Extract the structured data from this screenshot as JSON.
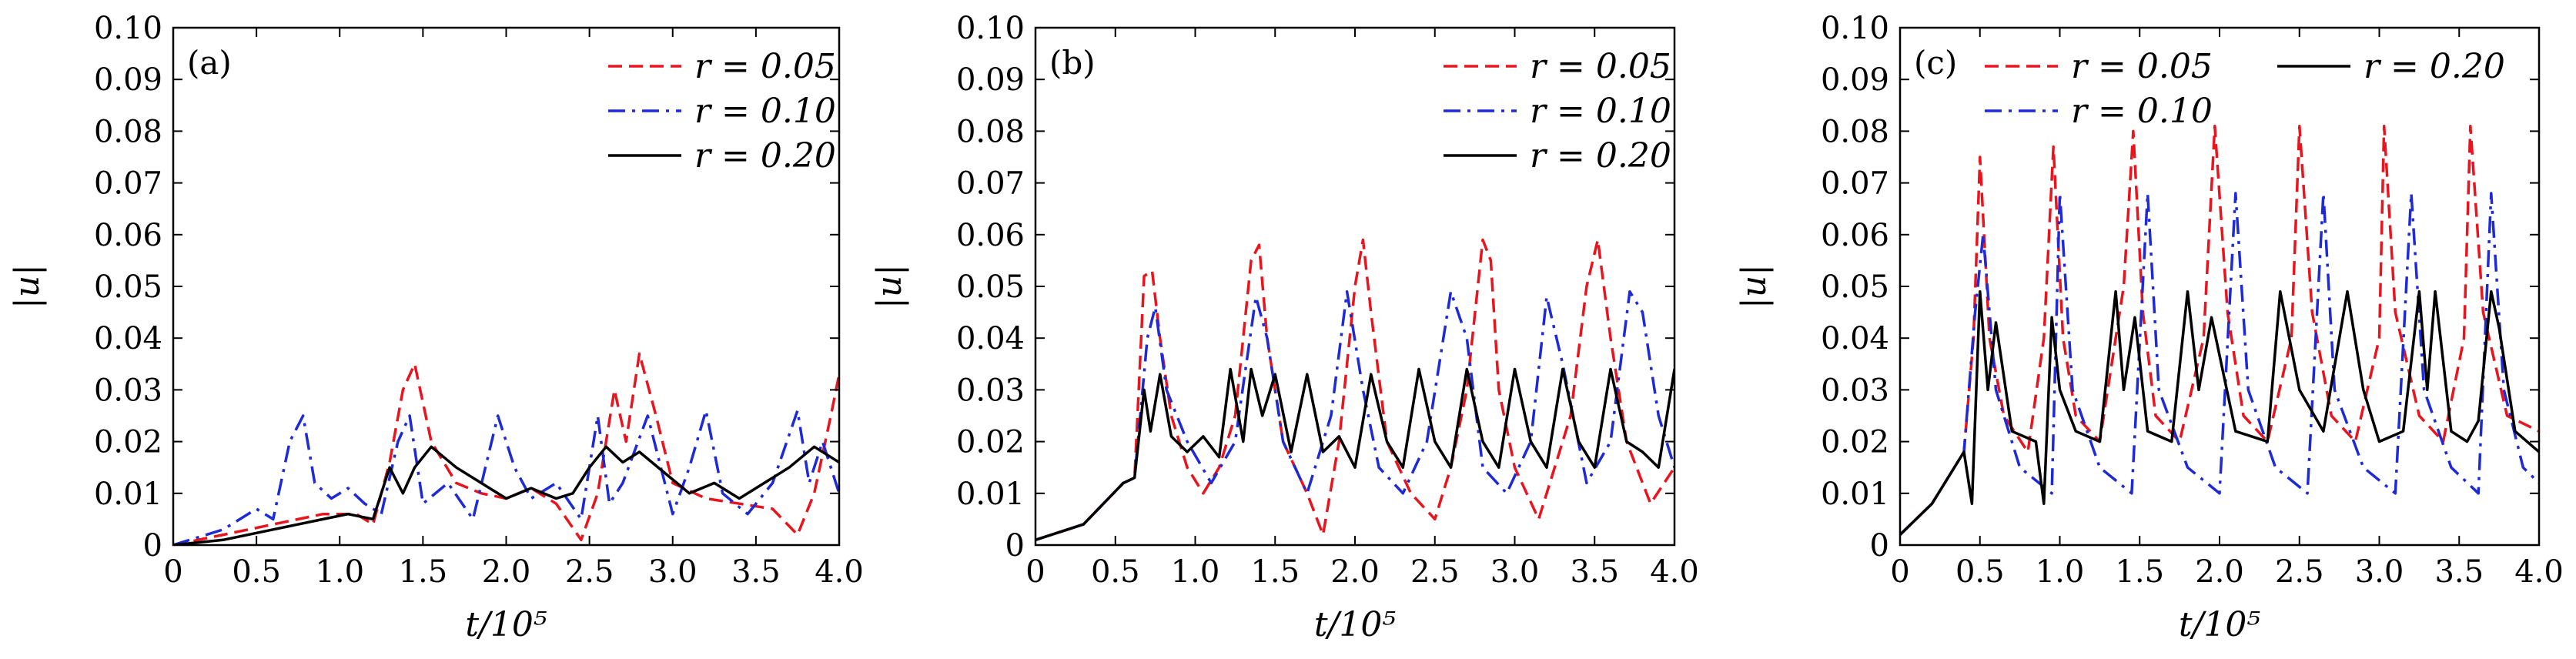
{
  "colors": {
    "r005": "#e8141e",
    "r010": "#1e2ad6",
    "r020": "#000000"
  },
  "chart_data": [
    {
      "type": "line",
      "panel_label": "(a)",
      "xlabel": "t/10⁵",
      "ylabel": "|u|",
      "xlim": [
        0,
        4.0
      ],
      "ylim": [
        0,
        0.1
      ],
      "xticks": [
        "0",
        "0.5",
        "1.0",
        "1.5",
        "2.0",
        "2.5",
        "3.0",
        "3.5",
        "4.0"
      ],
      "yticks": [
        "0",
        "0.01",
        "0.02",
        "0.03",
        "0.04",
        "0.05",
        "0.06",
        "0.07",
        "0.08",
        "0.09",
        "0.10"
      ],
      "legend_position": "top-right",
      "series": [
        {
          "name": "r = 0.05",
          "style": "dashed",
          "color_key": "r005",
          "x": [
            0,
            0.3,
            0.6,
            0.9,
            1.1,
            1.2,
            1.3,
            1.38,
            1.45,
            1.55,
            1.7,
            1.85,
            2.0,
            2.15,
            2.3,
            2.45,
            2.55,
            2.65,
            2.72,
            2.8,
            2.9,
            3.0,
            3.2,
            3.4,
            3.6,
            3.75,
            3.85,
            3.95,
            4.0
          ],
          "y": [
            0,
            0.002,
            0.004,
            0.006,
            0.006,
            0.004,
            0.016,
            0.03,
            0.035,
            0.02,
            0.012,
            0.01,
            0.009,
            0.011,
            0.008,
            0.001,
            0.01,
            0.03,
            0.02,
            0.037,
            0.025,
            0.012,
            0.009,
            0.008,
            0.007,
            0.002,
            0.01,
            0.025,
            0.033
          ]
        },
        {
          "name": "r = 0.10",
          "style": "dashdot",
          "color_key": "r010",
          "x": [
            0,
            0.3,
            0.5,
            0.6,
            0.7,
            0.78,
            0.85,
            0.95,
            1.05,
            1.15,
            1.25,
            1.35,
            1.42,
            1.5,
            1.65,
            1.8,
            1.95,
            2.05,
            2.15,
            2.3,
            2.45,
            2.55,
            2.62,
            2.7,
            2.85,
            3.0,
            3.1,
            3.2,
            3.3,
            3.45,
            3.6,
            3.75,
            3.82,
            3.9,
            4.0
          ],
          "y": [
            0,
            0.003,
            0.007,
            0.005,
            0.02,
            0.025,
            0.012,
            0.009,
            0.011,
            0.008,
            0.006,
            0.02,
            0.025,
            0.008,
            0.012,
            0.005,
            0.025,
            0.015,
            0.009,
            0.012,
            0.005,
            0.025,
            0.008,
            0.012,
            0.025,
            0.006,
            0.015,
            0.026,
            0.01,
            0.006,
            0.012,
            0.026,
            0.012,
            0.02,
            0.01
          ]
        },
        {
          "name": "r = 0.20",
          "style": "solid",
          "color_key": "r020",
          "x": [
            0,
            0.3,
            0.6,
            0.9,
            1.05,
            1.2,
            1.3,
            1.38,
            1.45,
            1.55,
            1.7,
            1.85,
            2.0,
            2.15,
            2.3,
            2.4,
            2.5,
            2.6,
            2.7,
            2.8,
            2.95,
            3.1,
            3.25,
            3.4,
            3.55,
            3.7,
            3.85,
            4.0
          ],
          "y": [
            0,
            0.001,
            0.003,
            0.005,
            0.006,
            0.005,
            0.015,
            0.01,
            0.015,
            0.019,
            0.015,
            0.012,
            0.009,
            0.011,
            0.009,
            0.01,
            0.015,
            0.019,
            0.016,
            0.018,
            0.014,
            0.01,
            0.012,
            0.009,
            0.012,
            0.015,
            0.019,
            0.016
          ]
        }
      ]
    },
    {
      "type": "line",
      "panel_label": "(b)",
      "xlabel": "t/10⁵",
      "ylabel": "|u|",
      "xlim": [
        0,
        4.0
      ],
      "ylim": [
        0,
        0.1
      ],
      "xticks": [
        "0",
        "0.5",
        "1.0",
        "1.5",
        "2.0",
        "2.5",
        "3.0",
        "3.5",
        "4.0"
      ],
      "yticks": [
        "0",
        "0.01",
        "0.02",
        "0.03",
        "0.04",
        "0.05",
        "0.06",
        "0.07",
        "0.08",
        "0.09",
        "0.10"
      ],
      "legend_position": "top-right",
      "series": [
        {
          "name": "r = 0.05",
          "style": "dashed",
          "color_key": "r005",
          "x": [
            0,
            0.3,
            0.55,
            0.62,
            0.68,
            0.73,
            0.78,
            0.85,
            0.95,
            1.05,
            1.15,
            1.25,
            1.35,
            1.4,
            1.45,
            1.55,
            1.7,
            1.8,
            1.9,
            2.0,
            2.05,
            2.1,
            2.2,
            2.35,
            2.5,
            2.6,
            2.7,
            2.8,
            2.85,
            2.9,
            3.0,
            3.15,
            3.25,
            3.35,
            3.45,
            3.52,
            3.6,
            3.7,
            3.85,
            4.0
          ],
          "y": [
            0.001,
            0.004,
            0.012,
            0.013,
            0.052,
            0.053,
            0.04,
            0.025,
            0.015,
            0.01,
            0.015,
            0.025,
            0.055,
            0.058,
            0.04,
            0.02,
            0.01,
            0.002,
            0.02,
            0.05,
            0.059,
            0.045,
            0.02,
            0.01,
            0.005,
            0.015,
            0.03,
            0.059,
            0.055,
            0.03,
            0.015,
            0.005,
            0.015,
            0.025,
            0.05,
            0.059,
            0.04,
            0.02,
            0.008,
            0.015
          ]
        },
        {
          "name": "r = 0.10",
          "style": "dashdot",
          "color_key": "r010",
          "x": [
            0,
            0.3,
            0.55,
            0.62,
            0.7,
            0.75,
            0.82,
            0.95,
            1.1,
            1.25,
            1.38,
            1.45,
            1.55,
            1.7,
            1.85,
            1.95,
            2.05,
            2.15,
            2.3,
            2.45,
            2.6,
            2.7,
            2.8,
            2.95,
            3.1,
            3.2,
            3.3,
            3.45,
            3.6,
            3.72,
            3.8,
            3.9,
            4.0
          ],
          "y": [
            0.001,
            0.004,
            0.012,
            0.013,
            0.04,
            0.046,
            0.03,
            0.02,
            0.012,
            0.02,
            0.048,
            0.04,
            0.02,
            0.01,
            0.025,
            0.049,
            0.03,
            0.015,
            0.01,
            0.02,
            0.049,
            0.04,
            0.015,
            0.01,
            0.02,
            0.048,
            0.035,
            0.012,
            0.02,
            0.049,
            0.045,
            0.025,
            0.015
          ]
        },
        {
          "name": "r = 0.20",
          "style": "solid",
          "color_key": "r020",
          "x": [
            0,
            0.3,
            0.55,
            0.62,
            0.68,
            0.72,
            0.78,
            0.85,
            0.95,
            1.05,
            1.15,
            1.22,
            1.3,
            1.35,
            1.42,
            1.5,
            1.6,
            1.7,
            1.8,
            1.9,
            2.0,
            2.1,
            2.2,
            2.3,
            2.4,
            2.5,
            2.6,
            2.7,
            2.8,
            2.9,
            3.0,
            3.1,
            3.2,
            3.3,
            3.4,
            3.5,
            3.6,
            3.7,
            3.8,
            3.9,
            4.0
          ],
          "y": [
            0.001,
            0.004,
            0.012,
            0.013,
            0.03,
            0.022,
            0.033,
            0.021,
            0.018,
            0.021,
            0.017,
            0.034,
            0.02,
            0.034,
            0.025,
            0.033,
            0.018,
            0.033,
            0.018,
            0.021,
            0.015,
            0.033,
            0.02,
            0.015,
            0.034,
            0.02,
            0.015,
            0.034,
            0.02,
            0.015,
            0.034,
            0.02,
            0.015,
            0.034,
            0.02,
            0.015,
            0.034,
            0.02,
            0.018,
            0.015,
            0.034
          ]
        }
      ]
    },
    {
      "type": "line",
      "panel_label": "(c)",
      "xlabel": "t/10⁵",
      "ylabel": "|u|",
      "xlim": [
        0,
        4.0
      ],
      "ylim": [
        0,
        0.1
      ],
      "xticks": [
        "0",
        "0.5",
        "1.0",
        "1.5",
        "2.0",
        "2.5",
        "3.0",
        "3.5",
        "4.0"
      ],
      "yticks": [
        "0",
        "0.01",
        "0.02",
        "0.03",
        "0.04",
        "0.05",
        "0.06",
        "0.07",
        "0.08",
        "0.09",
        "0.10"
      ],
      "legend_position": "top",
      "series": [
        {
          "name": "r = 0.05",
          "style": "dashed",
          "color_key": "r005",
          "x": [
            0,
            0.2,
            0.4,
            0.46,
            0.5,
            0.56,
            0.65,
            0.8,
            0.9,
            0.96,
            1.02,
            1.1,
            1.25,
            1.4,
            1.46,
            1.52,
            1.6,
            1.75,
            1.9,
            1.97,
            2.05,
            2.15,
            2.3,
            2.45,
            2.5,
            2.58,
            2.7,
            2.85,
            3.0,
            3.03,
            3.1,
            3.25,
            3.4,
            3.53,
            3.57,
            3.65,
            3.8,
            4.0
          ],
          "y": [
            0.002,
            0.008,
            0.018,
            0.04,
            0.075,
            0.04,
            0.025,
            0.018,
            0.04,
            0.077,
            0.04,
            0.025,
            0.02,
            0.05,
            0.08,
            0.045,
            0.025,
            0.02,
            0.04,
            0.081,
            0.045,
            0.025,
            0.02,
            0.04,
            0.081,
            0.045,
            0.025,
            0.02,
            0.04,
            0.081,
            0.045,
            0.025,
            0.02,
            0.04,
            0.081,
            0.045,
            0.025,
            0.022
          ]
        },
        {
          "name": "r = 0.10",
          "style": "dashdot",
          "color_key": "r010",
          "x": [
            0,
            0.2,
            0.4,
            0.47,
            0.52,
            0.6,
            0.75,
            0.95,
            1.0,
            1.08,
            1.25,
            1.45,
            1.55,
            1.62,
            1.8,
            2.0,
            2.1,
            2.18,
            2.35,
            2.55,
            2.65,
            2.72,
            2.9,
            3.1,
            3.2,
            3.28,
            3.45,
            3.62,
            3.7,
            3.78,
            3.9,
            4.0
          ],
          "y": [
            0.002,
            0.008,
            0.018,
            0.045,
            0.06,
            0.03,
            0.015,
            0.01,
            0.068,
            0.03,
            0.015,
            0.01,
            0.068,
            0.03,
            0.015,
            0.01,
            0.068,
            0.03,
            0.015,
            0.01,
            0.068,
            0.03,
            0.015,
            0.01,
            0.068,
            0.03,
            0.015,
            0.01,
            0.068,
            0.03,
            0.015,
            0.012
          ]
        },
        {
          "name": "r = 0.20",
          "style": "solid",
          "color_key": "r020",
          "x": [
            0,
            0.2,
            0.4,
            0.45,
            0.5,
            0.55,
            0.6,
            0.7,
            0.85,
            0.9,
            0.95,
            1.0,
            1.1,
            1.25,
            1.35,
            1.4,
            1.47,
            1.55,
            1.7,
            1.8,
            1.87,
            1.95,
            2.1,
            2.3,
            2.38,
            2.5,
            2.65,
            2.8,
            2.9,
            3.0,
            3.15,
            3.25,
            3.3,
            3.35,
            3.45,
            3.55,
            3.62,
            3.7,
            3.75,
            3.85,
            4.0
          ],
          "y": [
            0.002,
            0.008,
            0.018,
            0.008,
            0.049,
            0.03,
            0.043,
            0.022,
            0.02,
            0.008,
            0.044,
            0.03,
            0.022,
            0.02,
            0.049,
            0.03,
            0.044,
            0.022,
            0.02,
            0.049,
            0.03,
            0.044,
            0.022,
            0.02,
            0.049,
            0.03,
            0.022,
            0.049,
            0.03,
            0.02,
            0.022,
            0.049,
            0.03,
            0.049,
            0.022,
            0.02,
            0.024,
            0.049,
            0.042,
            0.022,
            0.018
          ]
        }
      ]
    }
  ]
}
